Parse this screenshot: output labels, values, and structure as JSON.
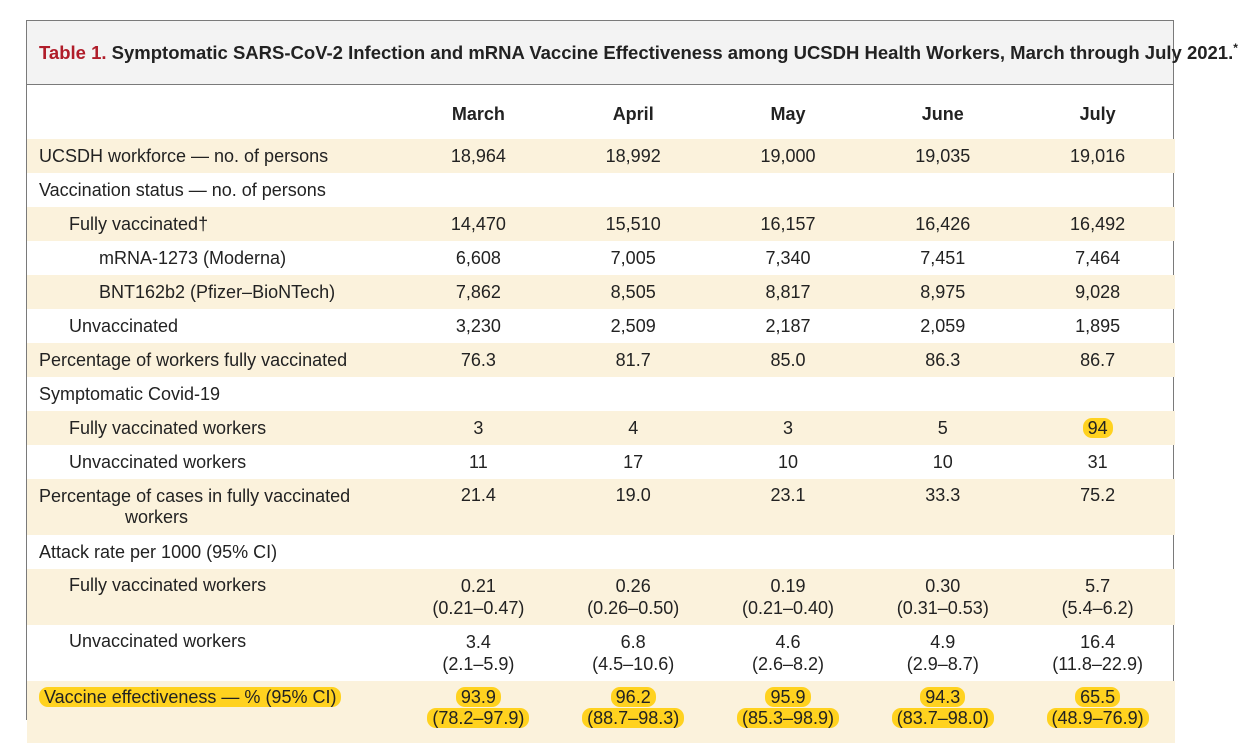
{
  "table_number": "Table 1.",
  "title_text": " Symptomatic SARS-CoV-2 Infection and mRNA Vaccine Effectiveness among UCSDH Health Workers, March through July 2021.",
  "title_footnote": "*",
  "months": [
    "March",
    "April",
    "May",
    "June",
    "July"
  ],
  "rows": {
    "workforce": {
      "label": "UCSDH workforce — no. of persons",
      "values": [
        "18,964",
        "18,992",
        "19,000",
        "19,035",
        "19,016"
      ]
    },
    "vacc_status": {
      "label": "Vaccination status — no. of persons"
    },
    "fully_vacc": {
      "label": "Fully vaccinated",
      "mark": "†",
      "values": [
        "14,470",
        "15,510",
        "16,157",
        "16,426",
        "16,492"
      ]
    },
    "moderna": {
      "label": "mRNA-1273 (Moderna)",
      "values": [
        "6,608",
        "7,005",
        "7,340",
        "7,451",
        "7,464"
      ]
    },
    "pfizer": {
      "label": "BNT162b2 (Pfizer–BioNTech)",
      "values": [
        "7,862",
        "8,505",
        "8,817",
        "8,975",
        "9,028"
      ]
    },
    "unvacc": {
      "label": "Unvaccinated",
      "values": [
        "3,230",
        "2,509",
        "2,187",
        "2,059",
        "1,895"
      ]
    },
    "pct_vacc": {
      "label": "Percentage of workers fully vaccinated",
      "values": [
        "76.3",
        "81.7",
        "85.0",
        "86.3",
        "86.7"
      ]
    },
    "symptomatic": {
      "label": "Symptomatic Covid-19"
    },
    "fv_workers": {
      "label": "Fully vaccinated workers",
      "values": [
        "3",
        "4",
        "3",
        "5",
        "94"
      ]
    },
    "uv_workers": {
      "label": "Unvaccinated workers",
      "values": [
        "11",
        "17",
        "10",
        "10",
        "31"
      ]
    },
    "pct_cases": {
      "label_line1": "Percentage of cases in fully vaccinated",
      "label_line2": "workers",
      "values": [
        "21.4",
        "19.0",
        "23.1",
        "33.3",
        "75.2"
      ]
    },
    "attack": {
      "label": "Attack rate per 1000 (95% CI)"
    },
    "attack_fv": {
      "label": "Fully vaccinated workers",
      "values": [
        "0.21",
        "0.26",
        "0.19",
        "0.30",
        "5.7"
      ],
      "ci": [
        "(0.21–0.47)",
        "(0.26–0.50)",
        "(0.21–0.40)",
        "(0.31–0.53)",
        "(5.4–6.2)"
      ]
    },
    "attack_uv": {
      "label": "Unvaccinated workers",
      "values": [
        "3.4",
        "6.8",
        "4.6",
        "4.9",
        "16.4"
      ],
      "ci": [
        "(2.1–5.9)",
        "(4.5–10.6)",
        "(2.6–8.2)",
        "(2.9–8.7)",
        "(11.8–22.9)"
      ]
    },
    "ve": {
      "label": "Vaccine effectiveness — % (95% CI)",
      "values": [
        "93.9",
        "96.2",
        "95.9",
        "94.3",
        "65.5"
      ],
      "ci": [
        "(78.2–97.9)",
        "(88.7–98.3)",
        "(85.3–98.9)",
        "(83.7–98.0)",
        "(48.9–76.9)"
      ]
    }
  },
  "colors": {
    "highlight": "#ffd21f",
    "row_shade": "#fbf2dc",
    "title_number": "#b01d2a",
    "border": "#7a7a7a"
  }
}
